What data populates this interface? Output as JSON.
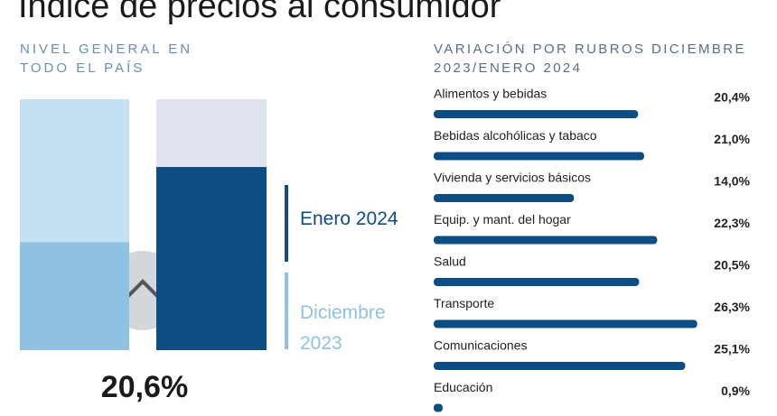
{
  "title": "Índice de precios al consumidor",
  "chart_data": [
    {
      "type": "bar",
      "title": "NIVEL GENERAL EN TODO EL PAÍS",
      "series": [
        {
          "name": "Diciembre 2023",
          "color": "#8fc1e3",
          "values": [
            43
          ]
        },
        {
          "name": "Enero 2024",
          "color": "#0e4c84",
          "values": [
            73
          ]
        }
      ],
      "ylim": [
        0,
        100
      ],
      "annotation": "20,6%"
    },
    {
      "type": "hbar",
      "title": "VARIACIÓN POR RUBROS DICIEMBRE 2023/ENERO 2024",
      "categories": [
        "Alimentos y bebidas",
        "Bebidas alcohólicas y tabaco",
        "Vivienda y servicios básicos",
        "Equip. y mant. del hogar",
        "Salud",
        "Transporte",
        "Comunicaciones",
        "Educación"
      ],
      "values": [
        20.4,
        21.0,
        14.0,
        22.3,
        20.5,
        26.3,
        25.1,
        0.9
      ],
      "value_labels": [
        "20,4%",
        "21,0%",
        "14,0%",
        "22,3%",
        "20,5%",
        "26,3%",
        "25,1%",
        "0,9%"
      ],
      "color": "#0e4c84",
      "xlim": [
        0,
        32
      ]
    }
  ]
}
